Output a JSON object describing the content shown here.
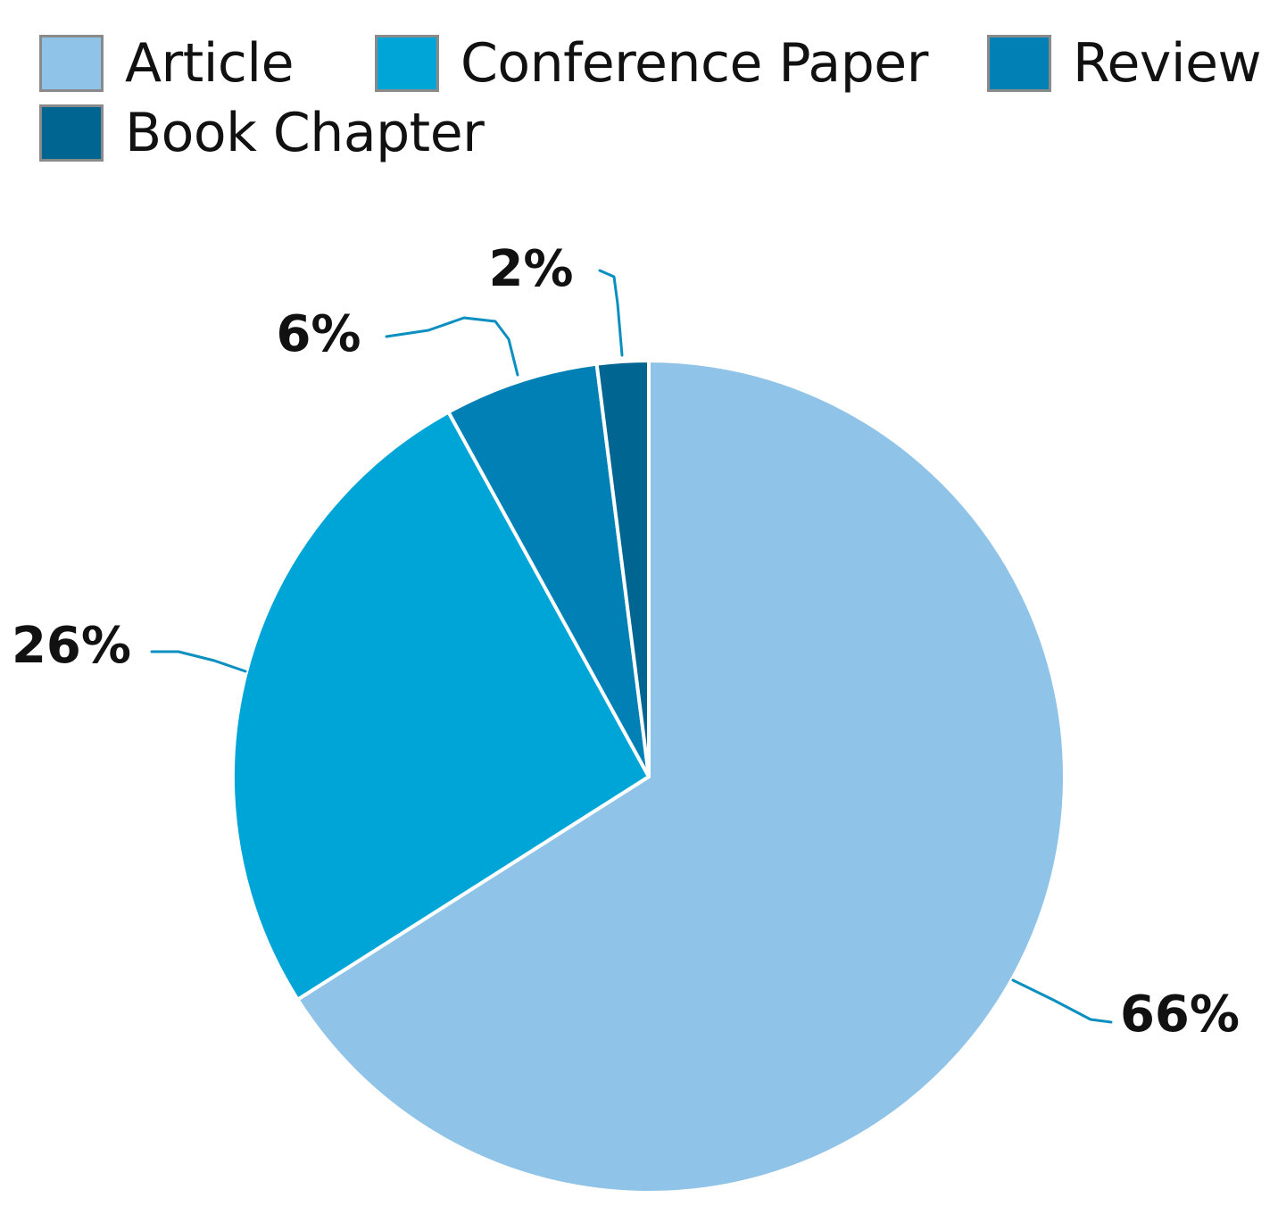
{
  "chart_data": {
    "type": "pie",
    "title": "",
    "categories": [
      "Article",
      "Conference Paper",
      "Review",
      "Book Chapter"
    ],
    "values": [
      66,
      26,
      6,
      2
    ],
    "value_labels": [
      "66%",
      "26%",
      "6%",
      "2%"
    ],
    "colors": [
      "#8fc3e8",
      "#00a5d8",
      "#0080b5",
      "#006590"
    ],
    "legend_position": "top-left",
    "start_angle": "12 o'clock",
    "direction": "clockwise",
    "slice_border_color": "#ffffff",
    "leader_line_color": "#0a8fc0"
  }
}
